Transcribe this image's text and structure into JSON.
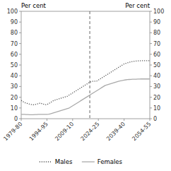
{
  "chart_data": {
    "type": "line",
    "y_label": "Per cent",
    "y2_label": "Per cent",
    "x": [
      1979.5,
      1980.5,
      1981.5,
      1982.5,
      1983.5,
      1984.5,
      1985.5,
      1986.5,
      1987.5,
      1988.5,
      1989.5,
      1990.5,
      1991.5,
      1992.5,
      1993.5,
      1994.5,
      1995.5,
      1996.5,
      1997.5,
      1998.5,
      1999.5,
      2000.5,
      2001.5,
      2002.5,
      2003.5,
      2004.5,
      2005.5,
      2006.5,
      2007.5,
      2008.5,
      2009.5,
      2010.5,
      2011.5,
      2012.5,
      2013.5,
      2014.5,
      2015.5,
      2016.5,
      2017.5,
      2018.5,
      2019.5,
      2020.5,
      2021.5,
      2022.5,
      2023.5,
      2024.5,
      2025.5,
      2026.5,
      2027.5,
      2028.5,
      2029.5,
      2030.5,
      2031.5,
      2032.5,
      2033.5,
      2034.5,
      2035.5,
      2036.5,
      2037.5,
      2038.5,
      2039.5,
      2040.5,
      2041.5,
      2042.5,
      2043.5,
      2044.5,
      2045.5,
      2046.5,
      2047.5,
      2048.5,
      2049.5,
      2050.5,
      2051.5,
      2052.5,
      2053.5,
      2054.5
    ],
    "series": [
      {
        "name": "Males",
        "color": "#555555",
        "line_style": "dotted",
        "values": [
          17,
          16,
          15,
          14.5,
          14,
          13.5,
          13.2,
          13,
          13.2,
          13.5,
          14,
          14.5,
          14,
          13.5,
          13,
          13.2,
          14,
          15,
          16,
          17,
          17.5,
          18,
          18.5,
          19,
          19.5,
          20,
          20.5,
          21,
          22,
          23,
          24,
          25,
          26,
          27,
          28,
          29,
          30,
          31,
          32,
          33,
          34,
          34.5,
          35,
          35,
          35,
          36,
          37,
          38,
          39,
          40,
          41,
          42,
          43,
          44,
          45,
          46,
          47,
          48,
          49,
          50,
          51,
          51.5,
          52,
          52.5,
          53,
          53.2,
          53.5,
          53.7,
          53.8,
          53.9,
          54,
          54,
          54,
          54,
          54,
          54
        ]
      },
      {
        "name": "Females",
        "color": "#aaaaaa",
        "line_style": "solid",
        "values": [
          4,
          4,
          4,
          3.8,
          3.8,
          3.7,
          3.7,
          3.7,
          3.8,
          3.8,
          4,
          4,
          4,
          4,
          4,
          4,
          4.2,
          4.5,
          5,
          5.5,
          6,
          6.5,
          7,
          7.5,
          8,
          8.5,
          9,
          9.5,
          10,
          11,
          12,
          13,
          14,
          15,
          16,
          17,
          18,
          19,
          20,
          21,
          22,
          23,
          24,
          25,
          26,
          27,
          28,
          29,
          30,
          31,
          31.5,
          32,
          32.5,
          33,
          33.5,
          34,
          34.5,
          35,
          35.3,
          35.6,
          36,
          36.2,
          36.4,
          36.5,
          36.6,
          36.7,
          36.8,
          36.8,
          36.9,
          36.9,
          37,
          37,
          37,
          37,
          37,
          37
        ]
      }
    ],
    "vline_x": 2019.5,
    "xlim": [
      1979.5,
      2054.5
    ],
    "xticks": [
      {
        "value": 1979.5,
        "label": "1979-80"
      },
      {
        "value": 1994.5,
        "label": "1994-95"
      },
      {
        "value": 2009.5,
        "label": "2009-10"
      },
      {
        "value": 2024.5,
        "label": "2024-25"
      },
      {
        "value": 2039.5,
        "label": "2039-40"
      },
      {
        "value": 2054.5,
        "label": "2054-55"
      }
    ],
    "ylim": [
      0,
      100
    ],
    "yticks": [
      0,
      10,
      20,
      30,
      40,
      50,
      60,
      70,
      80,
      90,
      100
    ],
    "y2lim": [
      0,
      100
    ],
    "y2ticks": [
      0,
      10,
      20,
      30,
      40,
      50,
      60,
      70,
      80,
      90,
      100
    ],
    "grid": false,
    "legend": "bottom"
  }
}
